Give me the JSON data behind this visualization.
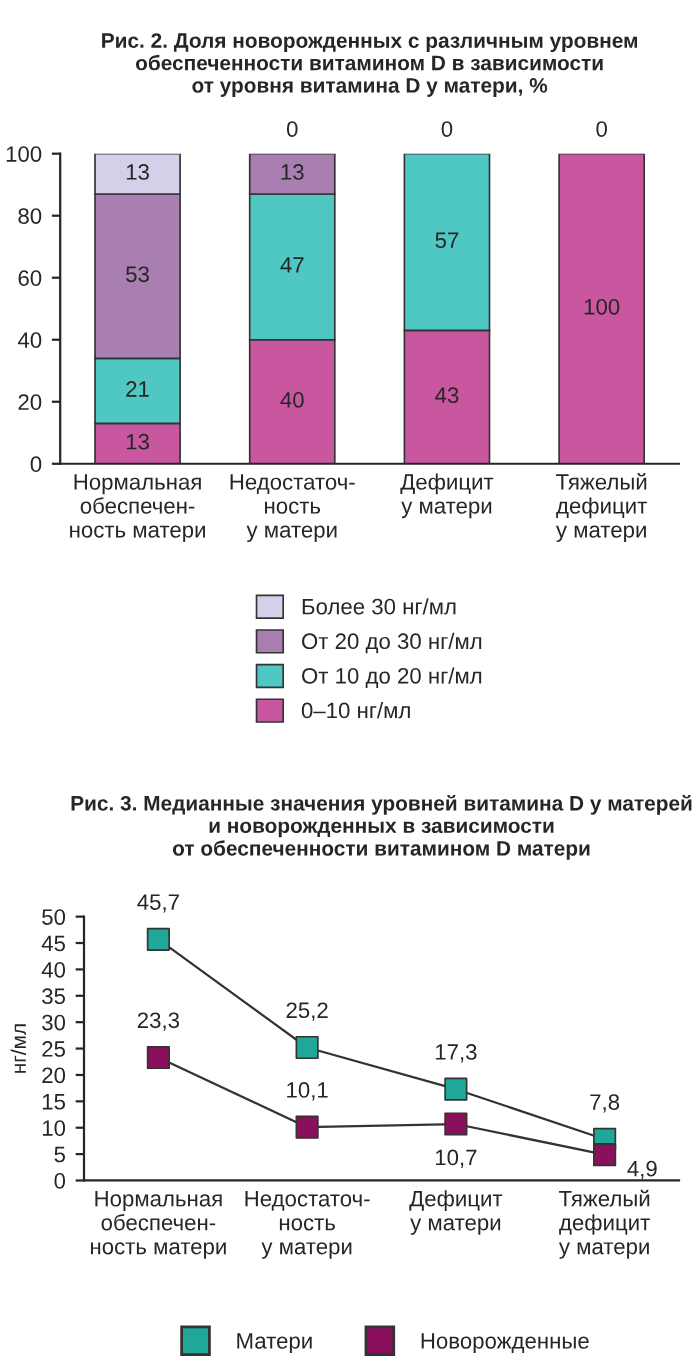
{
  "chart_data": [
    {
      "type": "bar",
      "stacked": true,
      "title": "Рис. 2. Доля новорожденных с различным уровнем\nобеспеченности витамином D в зависимости\nот уровня витамина D у матери, %",
      "categories": [
        "Нормальная\nобеспечен-\nность матери",
        "Недостаточ-\nность\nу матери",
        "Дефицит\nу матери",
        "Тяжелый\nдефицит\nу матери"
      ],
      "series": [
        {
          "name": "0–10 нг/мл",
          "color": "#c8579f",
          "values": [
            13,
            40,
            43,
            100
          ],
          "value_labels": [
            "13",
            "40",
            "43",
            "100"
          ]
        },
        {
          "name": "От 10 до 20 нг/мл",
          "color": "#4fc7c2",
          "values": [
            21,
            47,
            57,
            0
          ],
          "value_labels": [
            "21",
            "47",
            "57",
            null
          ]
        },
        {
          "name": "От 20 до 30 нг/мл",
          "color": "#a87fb0",
          "values": [
            53,
            13,
            0,
            0
          ],
          "value_labels": [
            "53",
            "13",
            null,
            null
          ]
        },
        {
          "name": "Более 30 нг/мл",
          "color": "#d4d0ea",
          "values": [
            13,
            0,
            0,
            0
          ],
          "value_labels": [
            "13",
            "0",
            "0",
            "0"
          ]
        }
      ],
      "ylim": [
        0,
        100
      ],
      "yticks": [
        0,
        20,
        40,
        60,
        80,
        100
      ],
      "grid": false,
      "legend": "bottom"
    },
    {
      "type": "line",
      "title": "Рис. 3. Медианные значения уровней витамина D у матерей\nи новорожденных в зависимости\nот обеспеченности витамином D матери",
      "categories": [
        "Нормальная\nобеспечен-\nность матери",
        "Недостаточ-\nность\nу матери",
        "Дефицит\nу матери",
        "Тяжелый\nдефицит\nу матери"
      ],
      "ylabel": "нг/мл",
      "series": [
        {
          "name": "Матери",
          "color": "#1fa79a",
          "values": [
            45.7,
            25.2,
            17.3,
            7.8
          ],
          "value_labels": [
            "45,7",
            "25,2",
            "17,3",
            "7,8"
          ]
        },
        {
          "name": "Новорожденные",
          "color": "#8a0f5c",
          "values": [
            23.3,
            10.1,
            10.7,
            4.9
          ],
          "value_labels": [
            "23,3",
            "10,1",
            "10,7",
            "4,9"
          ]
        }
      ],
      "ylim": [
        0,
        50
      ],
      "yticks": [
        0,
        5,
        10,
        15,
        20,
        25,
        30,
        35,
        40,
        45,
        50
      ],
      "grid": false,
      "legend": "bottom",
      "marker": "square",
      "line_style": "solid"
    }
  ]
}
